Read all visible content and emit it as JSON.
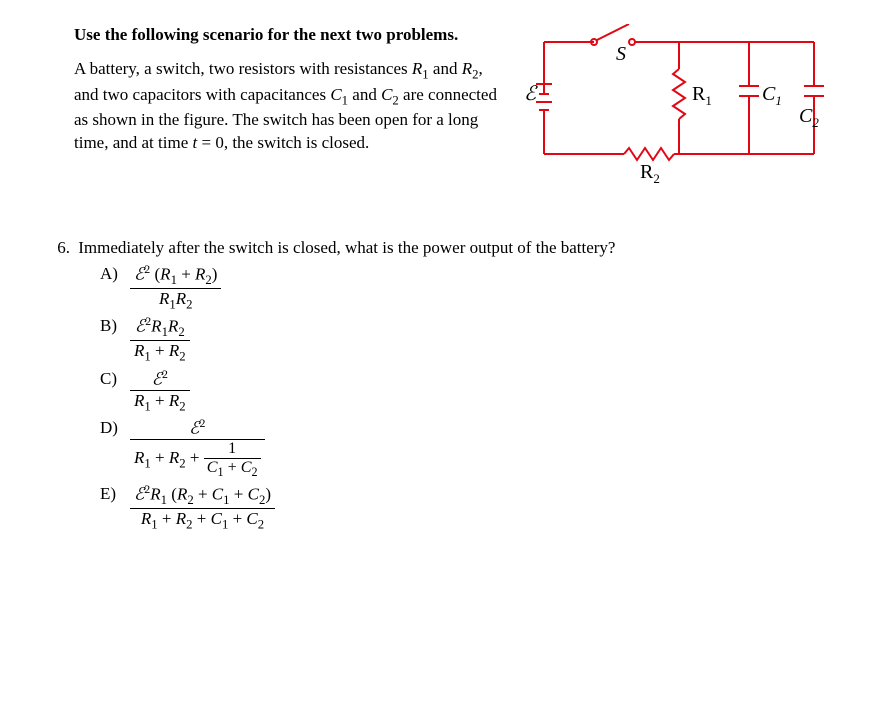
{
  "scenario": {
    "header": "Use the following scenario for the next two problems.",
    "body_html": "A battery, a switch, two resistors with resistances <span class=\"ital\">R</span><span class=\"sub\">1</span> and <span class=\"ital\">R</span><span class=\"sub\">2</span>, and two capacitors with capacitances <span class=\"ital\">C</span><span class=\"sub\">1</span> and <span class=\"ital\">C</span><span class=\"sub\">2</span> are connected as shown in the figure. The switch has been open for a long time, and at time <span class=\"ital\">t</span> = 0, the switch is closed."
  },
  "circuit": {
    "wire_color": "#e30613",
    "text_color": "#000000",
    "labels": {
      "S": "S",
      "E": "ℰ",
      "R1": "R",
      "R1_sub": "1",
      "R2": "R",
      "R2_sub": "2",
      "C1": "C",
      "C1_sub": "1",
      "C2": "C",
      "C2_sub": "2"
    }
  },
  "question": {
    "number": "6.",
    "stem": "Immediately after the switch is closed, what is the power output of the battery?"
  },
  "choices": {
    "A": {
      "num": "<span class=\"E\">ℰ</span><span class=\"sup\">2</span> (<span class=\"ital\">R</span><span class=\"sub\">1</span> + <span class=\"ital\">R</span><span class=\"sub\">2</span>)",
      "den": "<span class=\"ital\">R</span><span class=\"sub\">1</span><span class=\"ital\">R</span><span class=\"sub\">2</span>"
    },
    "B": {
      "num": "<span class=\"E\">ℰ</span><span class=\"sup\">2</span><span class=\"ital\">R</span><span class=\"sub\">1</span><span class=\"ital\">R</span><span class=\"sub\">2</span>",
      "den": "<span class=\"ital\">R</span><span class=\"sub\">1</span> + <span class=\"ital\">R</span><span class=\"sub\">2</span>"
    },
    "C": {
      "num": "<span class=\"E\">ℰ</span><span class=\"sup\">2</span>",
      "den": "<span class=\"ital\">R</span><span class=\"sub\">1</span> + <span class=\"ital\">R</span><span class=\"sub\">2</span>"
    },
    "D": {
      "num": "<span class=\"E\">ℰ</span><span class=\"sup\">2</span>",
      "den_outer_left": "<span class=\"ital\">R</span><span class=\"sub\">1</span> + <span class=\"ital\">R</span><span class=\"sub\">2</span> + ",
      "den_inner_num": "1",
      "den_inner_den": "<span class=\"ital\">C</span><span class=\"sub\">1</span> + <span class=\"ital\">C</span><span class=\"sub\">2</span>"
    },
    "E": {
      "num": "<span class=\"E\">ℰ</span><span class=\"sup\">2</span><span class=\"ital\">R</span><span class=\"sub\">1</span> (<span class=\"ital\">R</span><span class=\"sub\">2</span> + <span class=\"ital\">C</span><span class=\"sub\">1</span> + <span class=\"ital\">C</span><span class=\"sub\">2</span>)",
      "den": "<span class=\"ital\">R</span><span class=\"sub\">1</span> + <span class=\"ital\">R</span><span class=\"sub\">2</span> + <span class=\"ital\">C</span><span class=\"sub\">1</span> + <span class=\"ital\">C</span><span class=\"sub\">2</span>"
    }
  }
}
